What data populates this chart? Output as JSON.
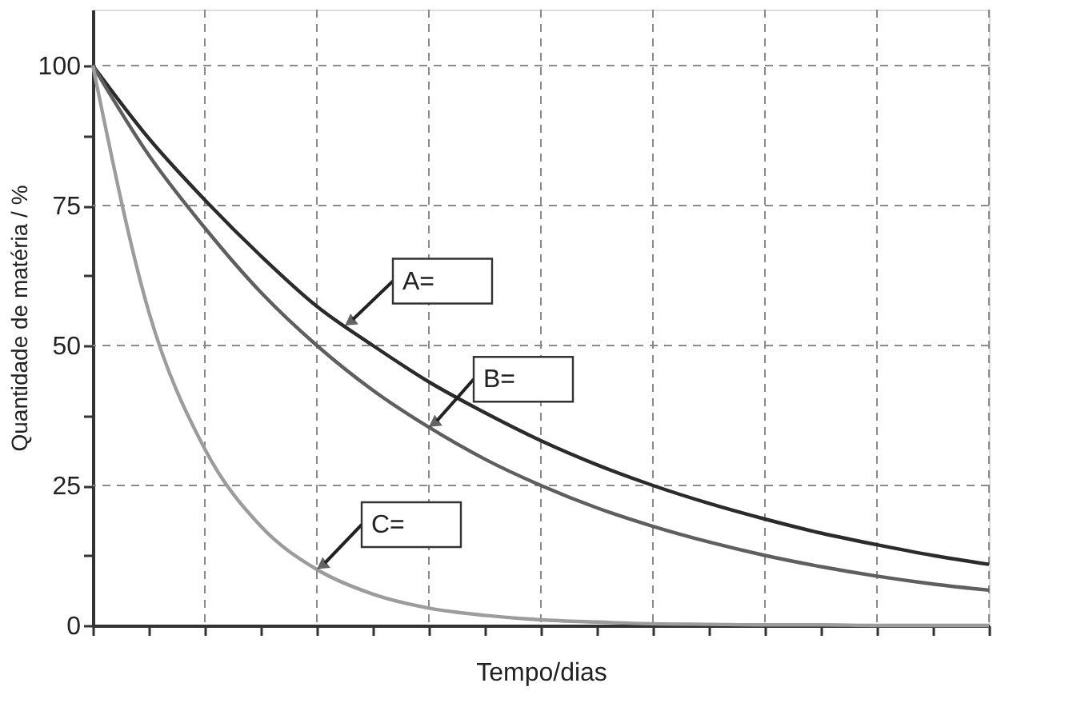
{
  "chart_data": {
    "type": "line",
    "xlabel": "Tempo/dias",
    "ylabel": "Quantidade de matéria / %",
    "categories": [
      null,
      null,
      null,
      null,
      null,
      null,
      null,
      null,
      null,
      null,
      null,
      null,
      null,
      null,
      null,
      null,
      null
    ],
    "series": [
      {
        "color": "#2b2b2b",
        "values": [
          100,
          87,
          76,
          66,
          57,
          50,
          43.5,
          38,
          33,
          28.7,
          25,
          21.8,
          19,
          16.5,
          14.4,
          12.5,
          10.9
        ]
      },
      {
        "color": "#5f5f5f",
        "values": [
          100,
          84,
          71,
          59.5,
          50,
          42,
          35.4,
          29.7,
          25,
          21,
          17.7,
          14.9,
          12.5,
          10.5,
          8.8,
          7.4,
          6.3
        ]
      },
      {
        "color": "#9c9c9c",
        "values": [
          100,
          56,
          31.5,
          17.7,
          10,
          5.6,
          3.1,
          1.8,
          1,
          0.6,
          0.3,
          0.2,
          0.1,
          0.1,
          0,
          0,
          0
        ]
      }
    ],
    "annotations": [
      "A=",
      "B=",
      "C="
    ],
    "ylim": [
      0,
      110
    ],
    "yticks": [
      0,
      {
        "value": 12.5,
        "label": null
      },
      25,
      {
        "value": 37.5,
        "label": null
      },
      50,
      {
        "value": 62.5,
        "label": null
      },
      75,
      {
        "value": 87.5,
        "label": null
      },
      100
    ],
    "tick_labels": "y",
    "grid": true,
    "legend": false,
    "line_style": "solid",
    "marker": "none"
  }
}
